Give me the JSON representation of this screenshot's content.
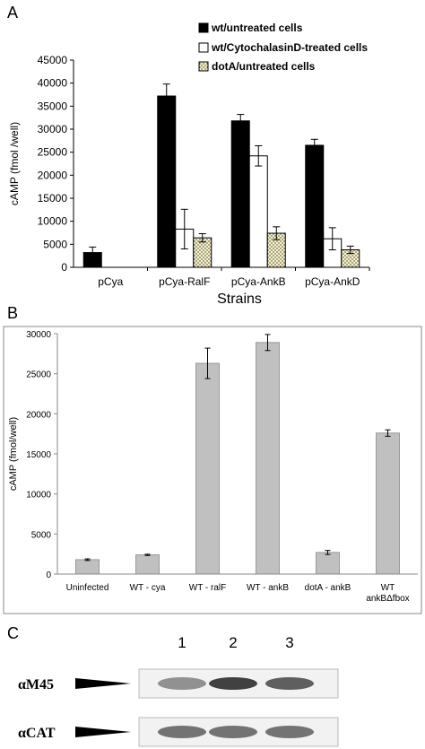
{
  "panels": {
    "a_label": "A",
    "b_label": "B",
    "c_label": "C"
  },
  "chart_data": [
    {
      "type": "bar",
      "panel": "A",
      "ylabel": "cAMP  (fmol /well)",
      "xlabel": "Strains",
      "ylim": [
        0,
        45000
      ],
      "yticks": [
        0,
        5000,
        10000,
        15000,
        20000,
        25000,
        30000,
        35000,
        40000,
        45000
      ],
      "categories": [
        "pCya",
        "pCya-RalF",
        "pCya-AnkB",
        "pCya-AnkD"
      ],
      "legend_position": "top-right",
      "series": [
        {
          "name": "wt/untreated cells",
          "color": "#000000",
          "pattern": "solid",
          "values": [
            3200,
            37200,
            31800,
            26500
          ],
          "errors": [
            1200,
            2600,
            1400,
            1300
          ]
        },
        {
          "name": "wt/CytochalasinD-treated cells",
          "color": "#ffffff",
          "pattern": "open",
          "values": [
            null,
            8300,
            24200,
            6200
          ],
          "errors": [
            null,
            4300,
            2200,
            2400
          ]
        },
        {
          "name": "dotA/untreated cells",
          "color": "#f6f2c8",
          "pattern": "dotted",
          "values": [
            null,
            6400,
            7400,
            3800
          ],
          "errors": [
            null,
            900,
            1400,
            800
          ]
        }
      ]
    },
    {
      "type": "bar",
      "panel": "B",
      "ylabel": "cAMP (fmol/well)",
      "xlabel": "",
      "ylim": [
        0,
        30000
      ],
      "yticks": [
        0,
        5000,
        10000,
        15000,
        20000,
        25000,
        30000
      ],
      "categories": [
        "Uninfected",
        "WT - cya",
        "WT - ralF",
        "WT - ankB",
        "dotA - ankB",
        "WT\nankBΔfbox"
      ],
      "series": [
        {
          "name": "",
          "color": "#c0c0c0",
          "values": [
            1800,
            2400,
            26300,
            28900,
            2700,
            17600
          ],
          "errors": [
            100,
            80,
            1900,
            1000,
            250,
            400
          ]
        }
      ]
    }
  ],
  "blot": {
    "lanes": [
      "1",
      "2",
      "3"
    ],
    "rows": [
      {
        "label": "αM45",
        "intensity": [
          0.55,
          0.95,
          0.8
        ]
      },
      {
        "label": "αCAT",
        "intensity": [
          0.7,
          0.7,
          0.7
        ]
      }
    ]
  }
}
